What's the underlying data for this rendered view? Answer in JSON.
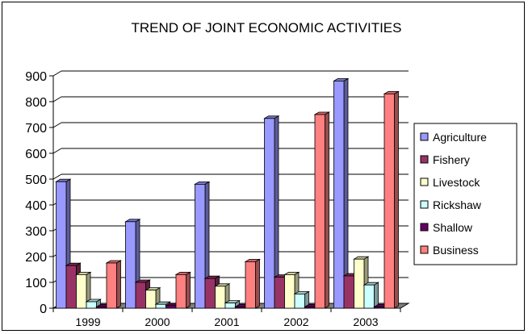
{
  "chart_data": {
    "type": "bar",
    "title": "TREND OF JOINT ECONOMIC ACTIVITIES",
    "categories": [
      "1999",
      "2000",
      "2001",
      "2002",
      "2003"
    ],
    "ylim": [
      0,
      900
    ],
    "yticks": [
      0,
      100,
      200,
      300,
      400,
      500,
      600,
      700,
      800,
      900
    ],
    "grid": true,
    "legend_position": "right",
    "series": [
      {
        "name": "Agriculture",
        "values": [
          490,
          335,
          480,
          735,
          880
        ],
        "color": "#9999ff"
      },
      {
        "name": "Fishery",
        "values": [
          165,
          100,
          115,
          120,
          125
        ],
        "color": "#993366"
      },
      {
        "name": "Livestock",
        "values": [
          130,
          70,
          85,
          130,
          190
        ],
        "color": "#ffffcc"
      },
      {
        "name": "Rickshaw",
        "values": [
          25,
          15,
          20,
          55,
          90
        ],
        "color": "#ccffff"
      },
      {
        "name": "Shallow",
        "values": [
          5,
          10,
          5,
          5,
          5
        ],
        "color": "#660066"
      },
      {
        "name": "Business",
        "values": [
          175,
          130,
          180,
          750,
          830
        ],
        "color": "#ff8080"
      }
    ]
  }
}
